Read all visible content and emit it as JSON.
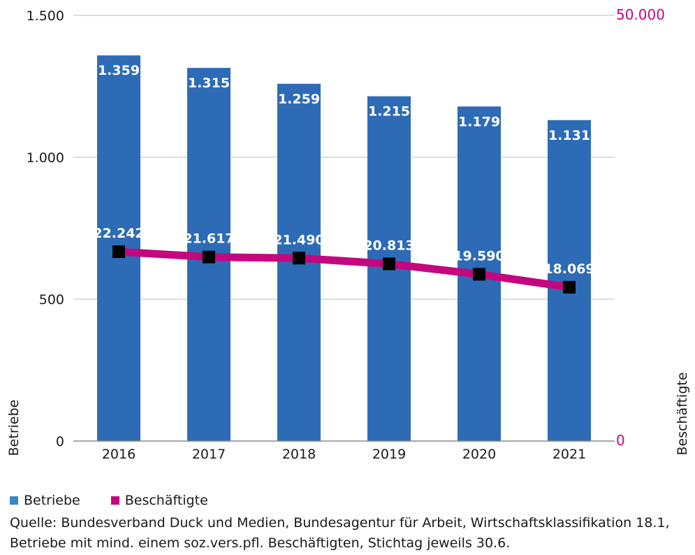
{
  "chart_data": {
    "type": "bar",
    "categories": [
      "2016",
      "2017",
      "2018",
      "2019",
      "2020",
      "2021"
    ],
    "series": [
      {
        "name": "Betriebe",
        "type": "bar",
        "axis": "left",
        "values": [
          1359,
          1315,
          1259,
          1215,
          1179,
          1131
        ],
        "labels": [
          "1.359",
          "1.315",
          "1.259",
          "1.215",
          "1.179",
          "1.131"
        ]
      },
      {
        "name": "Beschäftigte",
        "type": "line",
        "axis": "right",
        "values": [
          22242,
          21617,
          21490,
          20813,
          19590,
          18069
        ],
        "labels": [
          "22.242",
          "21.617",
          "21.490",
          "20.813",
          "19.590",
          "18.069"
        ]
      }
    ],
    "y_left": {
      "label": "Betriebe",
      "ylim": [
        0,
        1500
      ],
      "ticks": [
        0,
        500,
        1000,
        1500
      ],
      "tick_labels": [
        "0",
        "500",
        "1.000",
        "1.500"
      ]
    },
    "y_right": {
      "label": "Beschäftigte",
      "ylim": [
        0,
        50000
      ],
      "ticks": [
        0,
        50000
      ],
      "tick_labels": [
        "0",
        "50.000"
      ]
    },
    "grid": true,
    "legend_position": "bottom-left",
    "colors": {
      "bar": "#2e6bb6",
      "line": "#c4077f",
      "marker": "#000000",
      "right_axis_text": "#c4077f",
      "grid": "#bbbbbb"
    }
  },
  "legend": [
    {
      "label": "Betriebe",
      "color": "#3a86c8"
    },
    {
      "label": "Beschäftigte",
      "color": "#c4077f"
    }
  ],
  "source": {
    "line1": "Quelle: Bundesverband Duck und Medien, Bundesagentur für Arbeit, Wirtschaftsklassifikation 18.1,",
    "line2": "Betriebe mit mind. einem soz.vers.pfl. Beschäftigten, Stichtag jeweils 30.6."
  }
}
